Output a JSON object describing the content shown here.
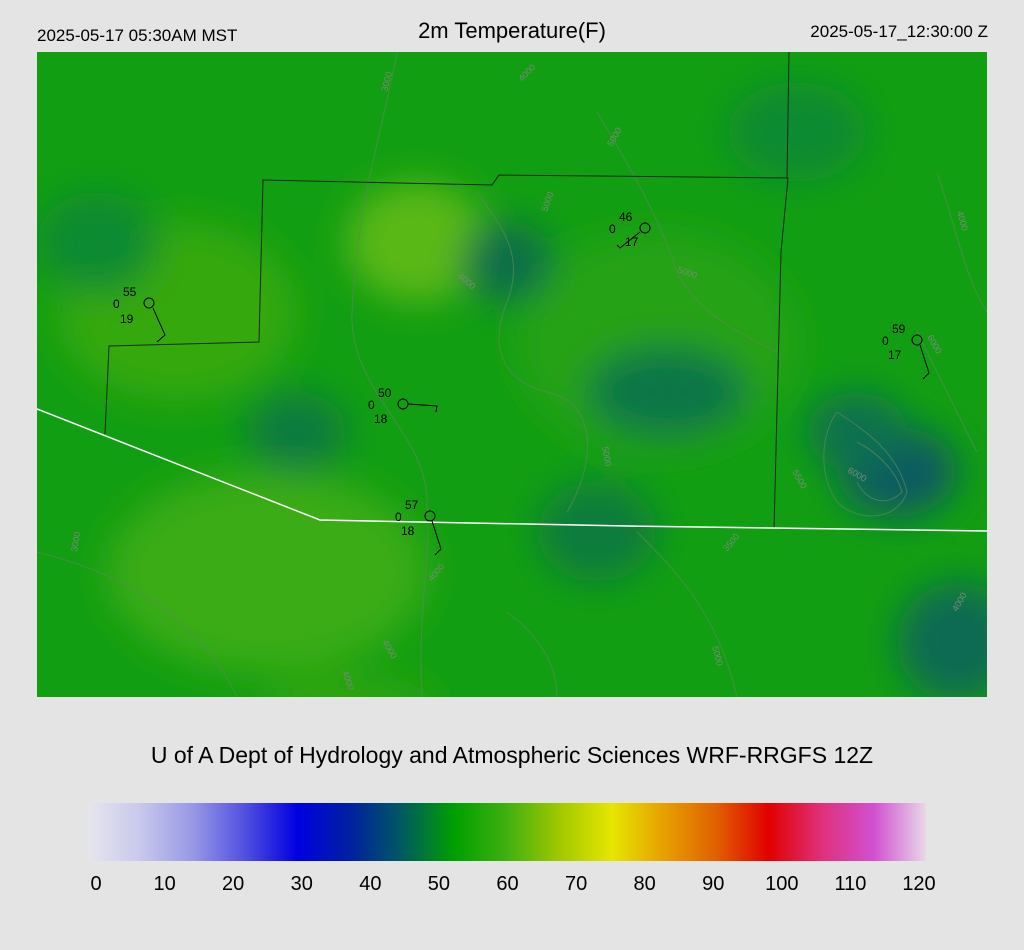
{
  "header": {
    "local_time": "2025-05-17 05:30AM MST",
    "title": "2m Temperature(F)",
    "utc_time": "2025-05-17_12:30:00 Z"
  },
  "credit": "U of A Dept of Hydrology and Atmospheric Sciences WRF-RRGFS 12Z",
  "colorbar": {
    "ticks": [
      "0",
      "10",
      "20",
      "30",
      "40",
      "50",
      "60",
      "70",
      "80",
      "90",
      "100",
      "110",
      "120"
    ],
    "colors": [
      "#e6e6ee",
      "#c8c8ec",
      "#9898e6",
      "#5050e0",
      "#0000e0",
      "#0020a0",
      "#005a60",
      "#00a000",
      "#40b010",
      "#a0c800",
      "#e6e600",
      "#e6a000",
      "#e06000",
      "#e00000",
      "#e0307a",
      "#d050d0",
      "#e8d8e8"
    ]
  },
  "stations": [
    {
      "id": "st-west",
      "temp": "55",
      "dew": "19",
      "gust": "0"
    },
    {
      "id": "st-center-north",
      "temp": "46",
      "dew": "17",
      "gust": "0"
    },
    {
      "id": "st-center",
      "temp": "50",
      "dew": "18",
      "gust": "0"
    },
    {
      "id": "st-south",
      "temp": "57",
      "dew": "18",
      "gust": "0"
    },
    {
      "id": "st-east",
      "temp": "59",
      "dew": "17",
      "gust": "0"
    }
  ],
  "contours": [
    "3000",
    "4000",
    "5000",
    "6000",
    "4000",
    "5000",
    "5000",
    "4000",
    "6000",
    "5500",
    "3000",
    "4000",
    "4000",
    "5000",
    "4000",
    "3500",
    "5000",
    "4000"
  ]
}
